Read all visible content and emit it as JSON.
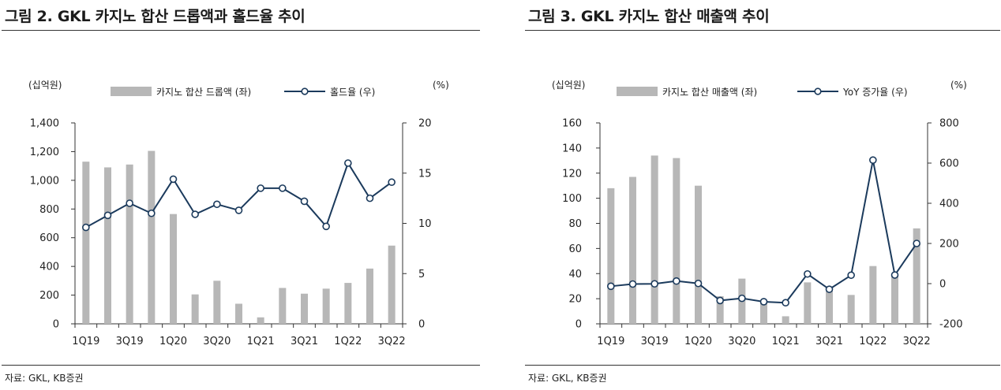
{
  "colors": {
    "bar": "#b7b7b7",
    "line": "#1b3a5c",
    "axis": "#333333",
    "text": "#222222"
  },
  "figures": [
    {
      "title": "그림 2. GKL 카지노 합산 드롭액과 홀드율 추이",
      "source": "자료: GKL, KB증권",
      "left_unit": "(십억원)",
      "right_unit": "(%)",
      "legend_bar": "카지노 합산 드롭액 (좌)",
      "legend_line": "홀드율 (우)"
    },
    {
      "title": "그림 3. GKL 카지노 합산 매출액 추이",
      "source": "자료: GKL, KB증권",
      "left_unit": "(십억원)",
      "right_unit": "(%)",
      "legend_bar": "카지노 합산 매출액 (좌)",
      "legend_line": "YoY 증가율 (우)"
    }
  ],
  "chart_data": [
    {
      "type": "bar+line",
      "title": "그림 2. GKL 카지노 합산 드롭액과 홀드율 추이",
      "categories": [
        "1Q19",
        "2Q19",
        "3Q19",
        "4Q19",
        "1Q20",
        "2Q20",
        "3Q20",
        "4Q20",
        "1Q21",
        "2Q21",
        "3Q21",
        "4Q21",
        "1Q22",
        "2Q22",
        "3Q22"
      ],
      "x_tick_labels": [
        "1Q19",
        "3Q19",
        "1Q20",
        "3Q20",
        "1Q21",
        "3Q21",
        "1Q22",
        "3Q22"
      ],
      "series": [
        {
          "name": "카지노 합산 드롭액 (좌)",
          "kind": "bar",
          "axis": "left",
          "values": [
            1130,
            1090,
            1110,
            1205,
            765,
            205,
            300,
            140,
            45,
            250,
            210,
            245,
            285,
            385,
            545
          ]
        },
        {
          "name": "홀드율 (우)",
          "kind": "line",
          "axis": "right",
          "values": [
            9.6,
            10.8,
            12.0,
            11.0,
            14.4,
            10.9,
            11.9,
            11.3,
            13.5,
            13.5,
            12.2,
            9.7,
            16.0,
            12.5,
            14.1
          ]
        }
      ],
      "left_axis": {
        "label": "(십억원)",
        "ylim": [
          0,
          1400
        ],
        "ticks": [
          "0",
          "200",
          "400",
          "600",
          "800",
          "1,000",
          "1,200",
          "1,400"
        ],
        "tick_values": [
          0,
          200,
          400,
          600,
          800,
          1000,
          1200,
          1400
        ]
      },
      "right_axis": {
        "label": "(%)",
        "ylim": [
          0,
          20
        ],
        "ticks": [
          "0",
          "5",
          "10",
          "15",
          "20"
        ],
        "tick_values": [
          0,
          5,
          10,
          15,
          20
        ]
      },
      "legend_position": "top"
    },
    {
      "type": "bar+line",
      "title": "그림 3. GKL 카지노 합산 매출액 추이",
      "categories": [
        "1Q19",
        "2Q19",
        "3Q19",
        "4Q19",
        "1Q20",
        "2Q20",
        "3Q20",
        "4Q20",
        "1Q21",
        "2Q21",
        "3Q21",
        "4Q21",
        "1Q22",
        "2Q22",
        "3Q22"
      ],
      "x_tick_labels": [
        "1Q19",
        "3Q19",
        "1Q20",
        "3Q20",
        "1Q21",
        "3Q21",
        "1Q22",
        "3Q22"
      ],
      "series": [
        {
          "name": "카지노 합산 매출액 (좌)",
          "kind": "bar",
          "axis": "left",
          "values": [
            108,
            117,
            134,
            132,
            110,
            22,
            36,
            18,
            6,
            33,
            27,
            23,
            46,
            40,
            76
          ]
        },
        {
          "name": "YoY 증가율 (우)",
          "kind": "line",
          "axis": "right",
          "values": [
            -13,
            -2,
            -1,
            13,
            1,
            -84,
            -73,
            -90,
            -95,
            48,
            -28,
            42,
            615,
            43,
            200
          ]
        }
      ],
      "left_axis": {
        "label": "(십억원)",
        "ylim": [
          0,
          160
        ],
        "ticks": [
          "0",
          "20",
          "40",
          "60",
          "80",
          "100",
          "120",
          "140",
          "160"
        ],
        "tick_values": [
          0,
          20,
          40,
          60,
          80,
          100,
          120,
          140,
          160
        ]
      },
      "right_axis": {
        "label": "(%)",
        "ylim": [
          -200,
          800
        ],
        "ticks": [
          "-200",
          "0",
          "200",
          "400",
          "600",
          "800"
        ],
        "tick_values": [
          -200,
          0,
          200,
          400,
          600,
          800
        ]
      },
      "legend_position": "top"
    }
  ]
}
